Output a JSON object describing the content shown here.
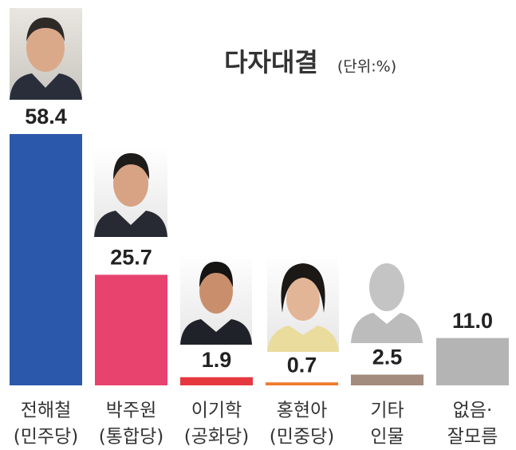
{
  "chart_data": {
    "type": "bar",
    "title": "다자대결",
    "subtitle": "(단위:%)",
    "categories": [
      [
        "전해철",
        "(민주당)"
      ],
      [
        "박주원",
        "(통합당)"
      ],
      [
        "이기학",
        "(공화당)"
      ],
      [
        "홍현아",
        "(민중당)"
      ],
      [
        "기타",
        "인물"
      ],
      [
        "없음·",
        "잘모름"
      ]
    ],
    "values": [
      58.4,
      25.7,
      1.9,
      0.7,
      2.5,
      11.0
    ],
    "value_labels": [
      "58.4",
      "25.7",
      "1.9",
      "0.7",
      "2.5",
      "11.0"
    ],
    "colors": [
      "#2c58ab",
      "#e8426f",
      "#e5383f",
      "#ef7a2c",
      "#a38b7d",
      "#b4b4b4"
    ]
  }
}
